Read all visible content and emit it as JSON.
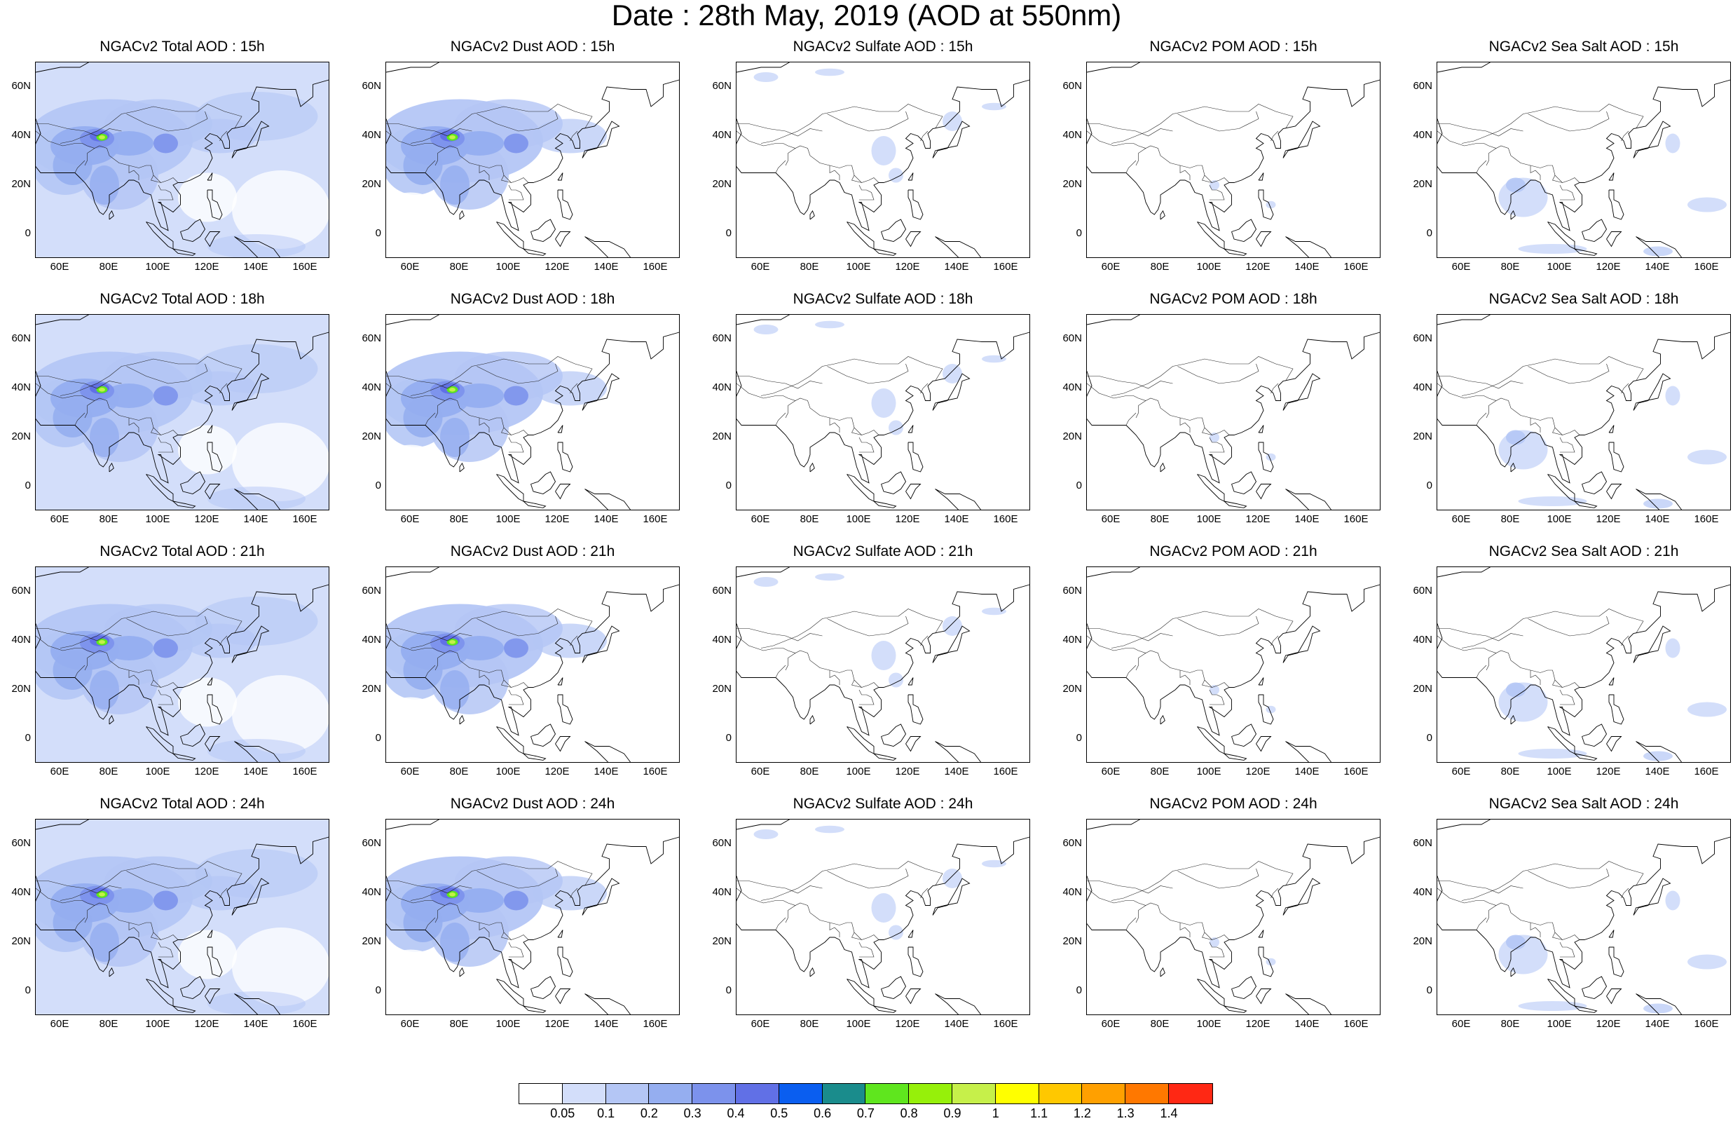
{
  "title": "Date : 28th May, 2019 (AOD at 550nm)",
  "panels": [
    {
      "title": "NGACv2 Total AOD : 15h",
      "type": "total"
    },
    {
      "title": "NGACv2 Dust AOD : 15h",
      "type": "dust"
    },
    {
      "title": "NGACv2 Sulfate AOD : 15h",
      "type": "sulfate"
    },
    {
      "title": "NGACv2 POM AOD : 15h",
      "type": "pom"
    },
    {
      "title": "NGACv2 Sea Salt AOD : 15h",
      "type": "seasalt"
    },
    {
      "title": "NGACv2 Total AOD : 18h",
      "type": "total"
    },
    {
      "title": "NGACv2 Dust AOD : 18h",
      "type": "dust"
    },
    {
      "title": "NGACv2 Sulfate AOD : 18h",
      "type": "sulfate"
    },
    {
      "title": "NGACv2 POM AOD : 18h",
      "type": "pom"
    },
    {
      "title": "NGACv2 Sea Salt AOD : 18h",
      "type": "seasalt"
    },
    {
      "title": "NGACv2 Total AOD : 21h",
      "type": "total"
    },
    {
      "title": "NGACv2 Dust AOD : 21h",
      "type": "dust"
    },
    {
      "title": "NGACv2 Sulfate AOD : 21h",
      "type": "sulfate"
    },
    {
      "title": "NGACv2 POM AOD : 21h",
      "type": "pom"
    },
    {
      "title": "NGACv2 Sea Salt AOD : 21h",
      "type": "seasalt"
    },
    {
      "title": "NGACv2 Total AOD : 24h",
      "type": "total"
    },
    {
      "title": "NGACv2 Dust AOD : 24h",
      "type": "dust"
    },
    {
      "title": "NGACv2 Sulfate AOD : 24h",
      "type": "sulfate"
    },
    {
      "title": "NGACv2 POM AOD : 24h",
      "type": "pom"
    },
    {
      "title": "NGACv2 Sea Salt  AOD : 24h",
      "type": "seasalt"
    }
  ],
  "lat_ticks": [
    "60N",
    "40N",
    "20N",
    "0"
  ],
  "lon_ticks": [
    "60E",
    "80E",
    "100E",
    "120E",
    "140E",
    "160E"
  ],
  "colorbar": {
    "colors": [
      "#ffffff",
      "#d3defa",
      "#b4c6f5",
      "#95aef0",
      "#7c92ec",
      "#6170e6",
      "#0a5ef0",
      "#1a8c8c",
      "#5fe61e",
      "#96f00a",
      "#c6f04a",
      "#ffff00",
      "#ffc800",
      "#ffa000",
      "#ff7800",
      "#ff2814"
    ],
    "labels": [
      "0.05",
      "0.1",
      "0.2",
      "0.3",
      "0.4",
      "0.5",
      "0.6",
      "0.7",
      "0.8",
      "0.9",
      "1",
      "1.1",
      "1.2",
      "1.3",
      "1.4"
    ]
  }
}
